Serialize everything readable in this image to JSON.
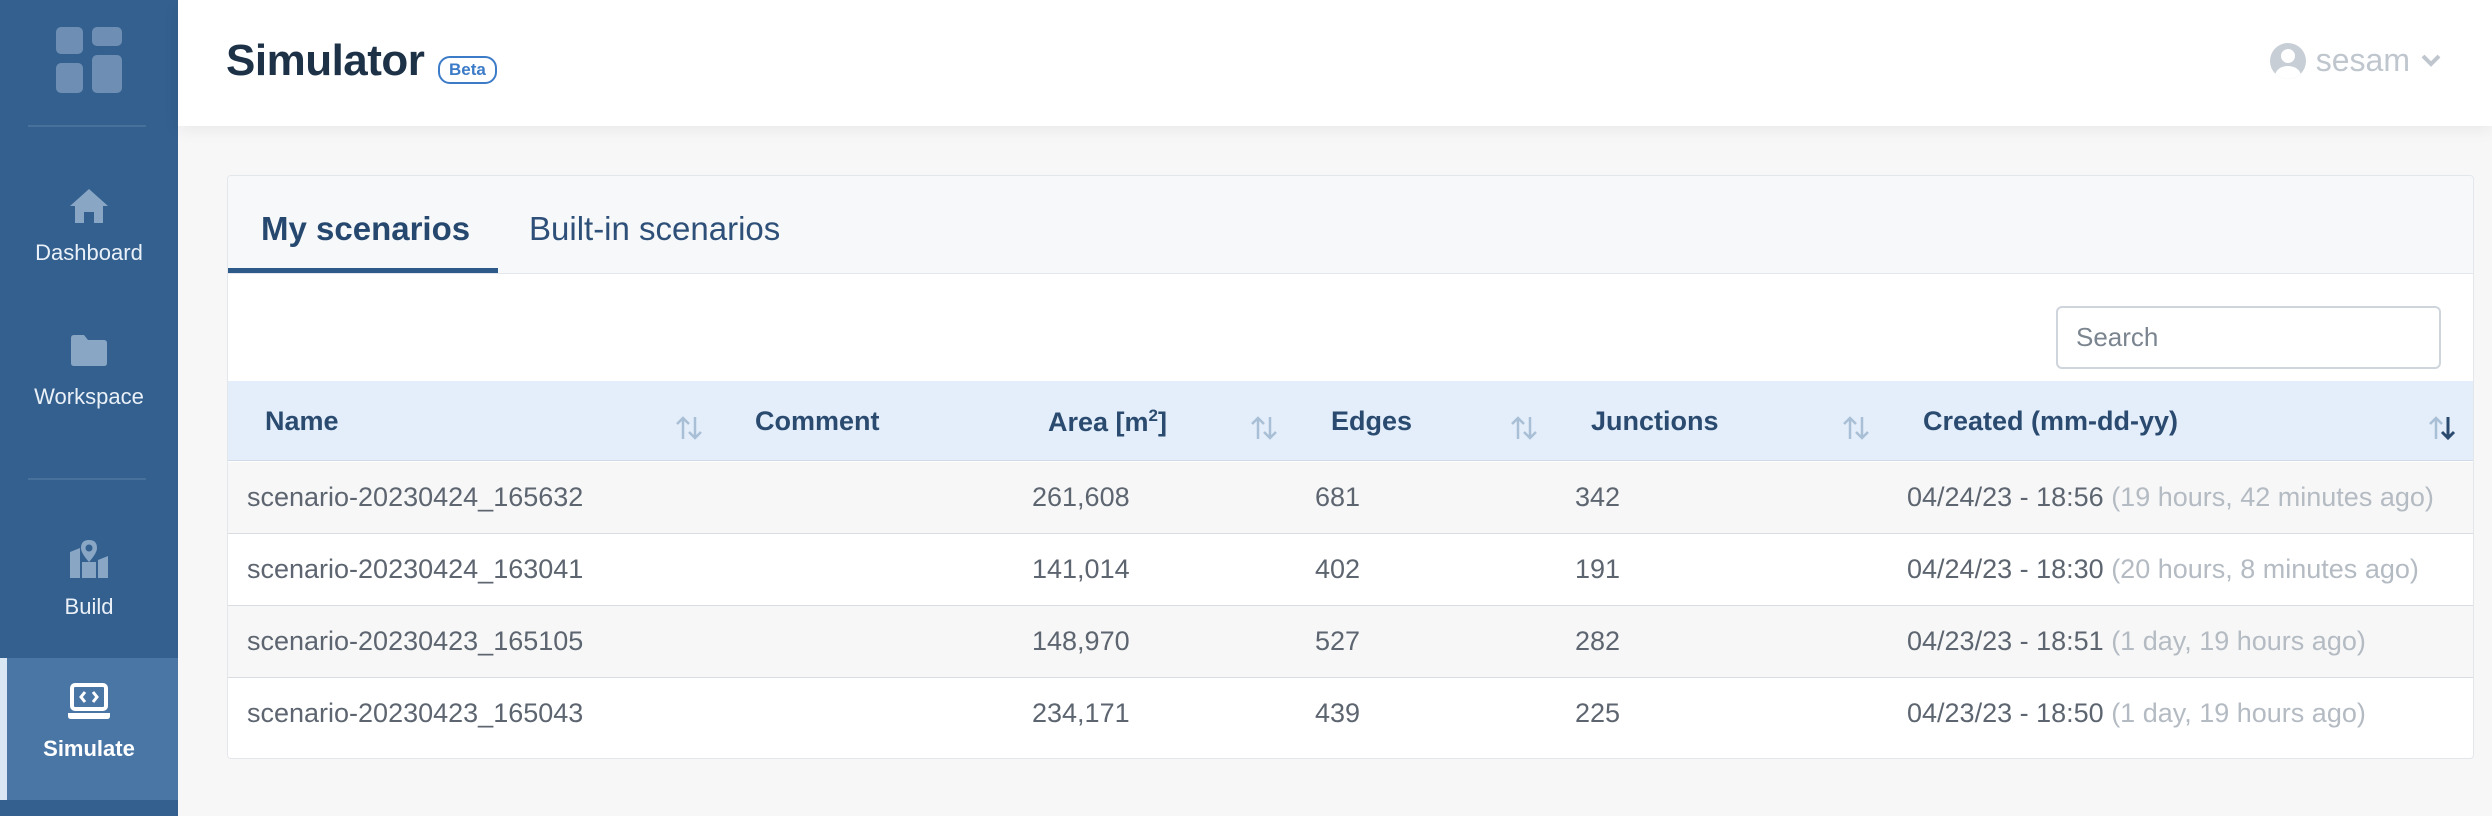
{
  "header": {
    "title": "Simulator",
    "badge": "Beta",
    "user": "sesam"
  },
  "sidebar": {
    "items": [
      {
        "label": "Dashboard",
        "icon": "home-icon"
      },
      {
        "label": "Workspace",
        "icon": "folder-icon"
      },
      {
        "label": "Build",
        "icon": "map-marker-icon"
      },
      {
        "label": "Simulate",
        "icon": "laptop-code-icon",
        "active": true
      }
    ]
  },
  "tabs": [
    {
      "label": "My scenarios",
      "active": true
    },
    {
      "label": "Built-in scenarios",
      "active": false
    }
  ],
  "search": {
    "placeholder": "Search",
    "value": ""
  },
  "table": {
    "columns": {
      "name": "Name",
      "comment": "Comment",
      "area": "Area [m",
      "area_sup": "2",
      "area_end": "]",
      "edges": "Edges",
      "junctions": "Junctions",
      "created": "Created (mm-dd-yy)"
    },
    "rows": [
      {
        "name": "scenario-20230424_165632",
        "comment": "",
        "area": "261,608",
        "edges": "681",
        "junctions": "342",
        "created": "04/24/23 - 18:56",
        "ago": "(19 hours, 42 minutes ago)"
      },
      {
        "name": "scenario-20230424_163041",
        "comment": "",
        "area": "141,014",
        "edges": "402",
        "junctions": "191",
        "created": "04/24/23 - 18:30",
        "ago": "(20 hours, 8 minutes ago)"
      },
      {
        "name": "scenario-20230423_165105",
        "comment": "",
        "area": "148,970",
        "edges": "527",
        "junctions": "282",
        "created": "04/23/23 - 18:51",
        "ago": "(1 day, 19 hours ago)"
      },
      {
        "name": "scenario-20230423_165043",
        "comment": "",
        "area": "234,171",
        "edges": "439",
        "junctions": "225",
        "created": "04/23/23 - 18:50",
        "ago": "(1 day, 19 hours ago)"
      }
    ]
  },
  "colors": {
    "sidebar": "#33608f",
    "sidebar_active": "#4a76a6",
    "accent": "#2e5a8a",
    "header_row": "#e3eefa"
  }
}
